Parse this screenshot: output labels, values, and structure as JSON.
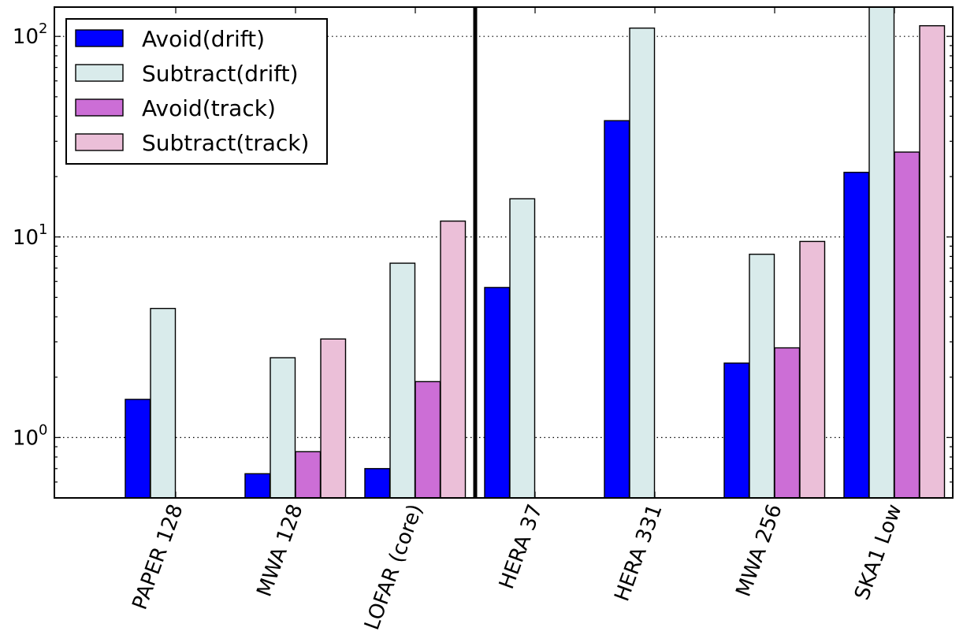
{
  "chart_data": {
    "type": "bar",
    "title": "",
    "xlabel": "",
    "ylabel": "",
    "yscale": "log",
    "ylim": [
      0.5,
      140
    ],
    "grid": "horizontal dotted at major decades",
    "legend_placement": "top-left",
    "categories": [
      "PAPER 128",
      "MWA 128",
      "LOFAR (core)",
      "HERA 37",
      "HERA 331",
      "MWA 256",
      "SKA1 Low"
    ],
    "series": [
      {
        "name": "Avoid(drift)",
        "color": "#0000ff",
        "values": [
          1.55,
          0.66,
          0.7,
          5.6,
          38.0,
          2.35,
          21.0
        ]
      },
      {
        "name": "Subtract(drift)",
        "color": "#d9ebeb",
        "values": [
          4.4,
          2.5,
          7.4,
          15.5,
          110.0,
          8.2,
          140.0
        ]
      },
      {
        "name": "Avoid(track)",
        "color": "#cc6ed6",
        "values": [
          null,
          0.85,
          1.9,
          null,
          null,
          2.8,
          26.5
        ]
      },
      {
        "name": "Subtract(track)",
        "color": "#ebbfd8",
        "values": [
          null,
          3.1,
          12.0,
          null,
          null,
          9.5,
          113.0
        ]
      }
    ],
    "yticks": [
      {
        "value": 1,
        "mantissa": "10",
        "exponent": "0"
      },
      {
        "value": 10,
        "mantissa": "10",
        "exponent": "1"
      },
      {
        "value": 100,
        "mantissa": "10",
        "exponent": "2"
      }
    ],
    "divider_after_category": "LOFAR (core)"
  }
}
